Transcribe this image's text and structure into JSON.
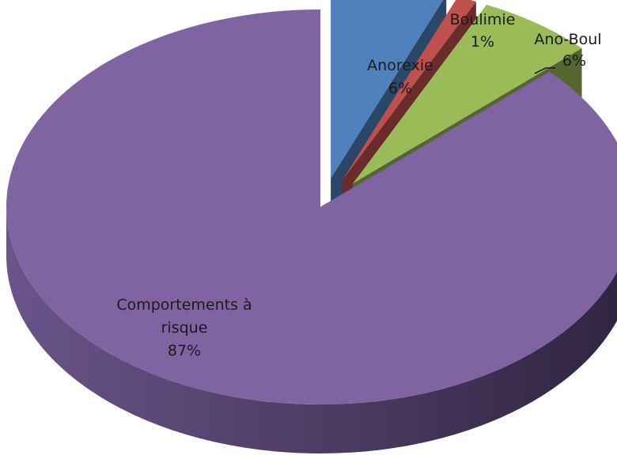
{
  "chart_data": {
    "type": "pie",
    "style": "3d-exploded",
    "slices": [
      {
        "label": "Anorexie",
        "value": 6,
        "display": "6%",
        "color": "#4f81bd"
      },
      {
        "label": "Boulimie",
        "value": 1,
        "display": "1%",
        "color": "#c0504d"
      },
      {
        "label": "Ano-Boul",
        "value": 6,
        "display": "6%",
        "color": "#9bbb59"
      },
      {
        "label": "Comportements à risque",
        "label_lines": [
          "Comportements à",
          "risque"
        ],
        "value": 87,
        "display": "87%",
        "color": "#8064a2"
      }
    ]
  }
}
